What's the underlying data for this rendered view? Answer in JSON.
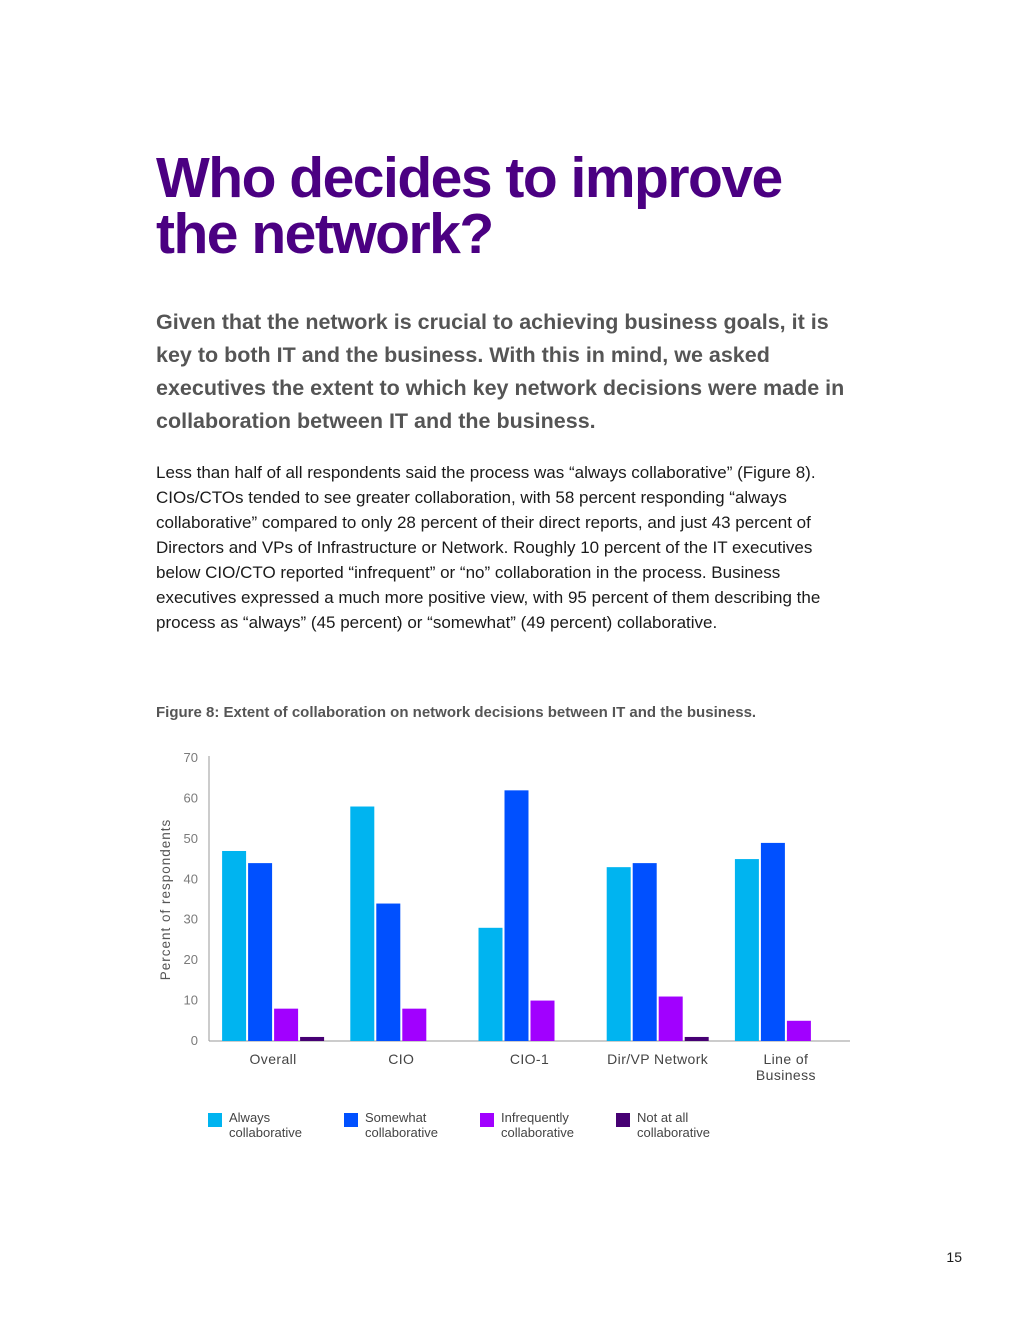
{
  "title": "Who decides to improve the network?",
  "lead": "Given that the network is crucial to achieving business goals, it is key to both IT and the business. With this in mind, we asked executives the extent to which key network decisions were made in collaboration between IT and the business.",
  "body": "Less than half of all respondents said the process was “always collaborative” (Figure 8). CIOs/CTOs tended to see greater collaboration, with 58 percent responding “always collaborative” compared to only 28 percent of their direct reports, and just 43 percent of Directors and VPs of Infrastructure or Network. Roughly 10 percent of the IT executives below CIO/CTO reported “infrequent” or “no” collaboration in the process. Business executives expressed a much more positive view, with 95 percent of them describing the process as “always” (45 percent) or “somewhat” (49 percent) collaborative.",
  "figure_caption": "Figure 8: Extent of collaboration on network decisions between IT and the business.",
  "page_number": "15",
  "chart_data": {
    "type": "bar",
    "title": "Figure 8: Extent of collaboration on network decisions between IT and the business.",
    "xlabel": "",
    "ylabel": "Percent of respondents",
    "ylim": [
      0,
      70
    ],
    "yticks": [
      0,
      10,
      20,
      30,
      40,
      50,
      60,
      70
    ],
    "categories": [
      [
        "Overall"
      ],
      [
        "CIO"
      ],
      [
        "CIO-1"
      ],
      [
        "Dir/VP Network"
      ],
      [
        "Line of",
        "Business"
      ]
    ],
    "series": [
      {
        "name": "Always collaborative",
        "legend_lines": [
          "Always",
          "collaborative"
        ],
        "color": "#00b4f0",
        "values": [
          47,
          58,
          28,
          43,
          45
        ]
      },
      {
        "name": "Somewhat collaborative",
        "legend_lines": [
          "Somewhat",
          "collaborative"
        ],
        "color": "#0050ff",
        "values": [
          44,
          34,
          62,
          44,
          49
        ]
      },
      {
        "name": "Infrequently collaborative",
        "legend_lines": [
          "Infrequently",
          "collaborative"
        ],
        "color": "#a100ff",
        "values": [
          8,
          8,
          10,
          11,
          5
        ]
      },
      {
        "name": "Not at all collaborative",
        "legend_lines": [
          "Not at all",
          "collaborative"
        ],
        "color": "#460073",
        "values": [
          1,
          0,
          0,
          1,
          0
        ]
      }
    ],
    "grid": false,
    "legend_position": "bottom"
  }
}
